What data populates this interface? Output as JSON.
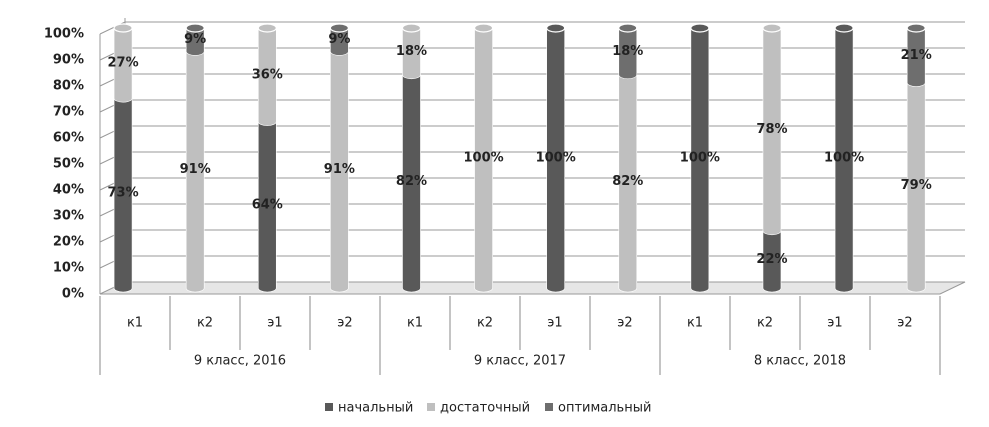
{
  "chart_data": {
    "type": "stacked-bar-3d",
    "categories": [
      "к1",
      "к2",
      "э1",
      "э2",
      "к1",
      "к2",
      "э1",
      "э2",
      "к1",
      "к2",
      "э1",
      "э2"
    ],
    "groups": [
      "9 класс, 2016",
      "9 класс, 2017",
      "8 класс, 2018"
    ],
    "series": [
      {
        "name": "начальный",
        "color": "#595959",
        "values": [
          73,
          null,
          64,
          null,
          82,
          null,
          100,
          null,
          100,
          22,
          100,
          null
        ],
        "value_labels": [
          "73%",
          null,
          "64%",
          null,
          "82%",
          null,
          "100%",
          null,
          "100%",
          "22%",
          "100%",
          null
        ]
      },
      {
        "name": "достаточный",
        "color": "#bfbfbf",
        "values": [
          27,
          91,
          36,
          91,
          18,
          100,
          null,
          82,
          null,
          78,
          null,
          79
        ],
        "value_labels": [
          "27%",
          "91%",
          "36%",
          "91%",
          "18%",
          "100%",
          null,
          "82%",
          null,
          "78%",
          null,
          "79%"
        ]
      },
      {
        "name": "оптимальный",
        "color": "#6e6e6e",
        "values": [
          null,
          9,
          null,
          9,
          null,
          null,
          null,
          18,
          null,
          null,
          null,
          21
        ],
        "value_labels": [
          null,
          "9%",
          null,
          "9%",
          null,
          null,
          null,
          "18%",
          null,
          null,
          null,
          "21%"
        ]
      }
    ],
    "ylim": [
      0,
      100
    ],
    "yticks": [
      {
        "value": 0,
        "label": "0%"
      },
      {
        "value": 10,
        "label": "10%"
      },
      {
        "value": 20,
        "label": "20%"
      },
      {
        "value": 30,
        "label": "30%"
      },
      {
        "value": 40,
        "label": "40%"
      },
      {
        "value": 50,
        "label": "50%"
      },
      {
        "value": 60,
        "label": "60%"
      },
      {
        "value": 70,
        "label": "70%"
      },
      {
        "value": 80,
        "label": "80%"
      },
      {
        "value": 90,
        "label": "90%"
      },
      {
        "value": 100,
        "label": "100%"
      }
    ],
    "grid": true,
    "legend": "bottom"
  }
}
